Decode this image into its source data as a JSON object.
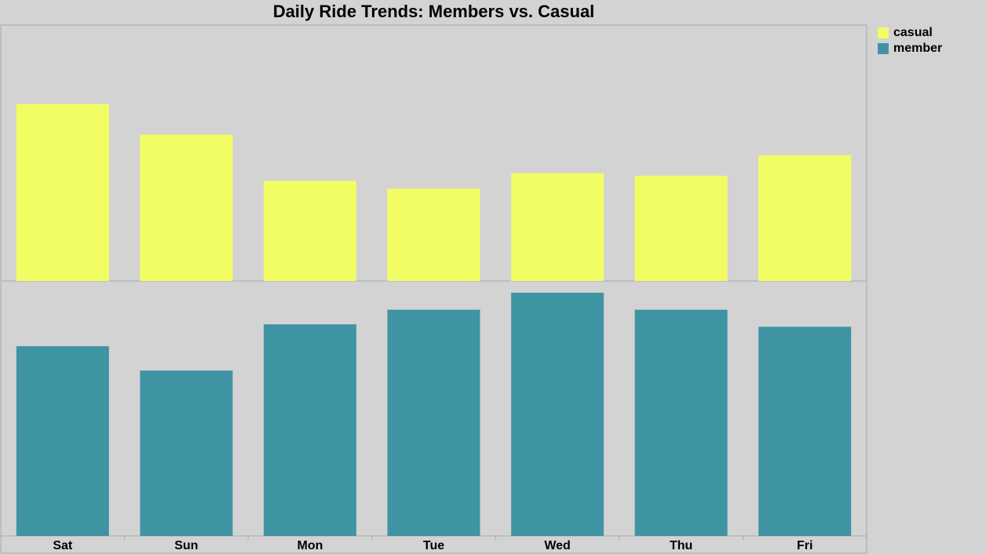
{
  "chart_data": {
    "type": "bar",
    "title": "Daily Ride Trends: Members vs. Casual",
    "xlabel": "",
    "ylabel": "",
    "categories": [
      "Sat",
      "Sun",
      "Mon",
      "Tue",
      "Wed",
      "Thu",
      "Fri"
    ],
    "series": [
      {
        "name": "casual",
        "color": "#f2fd64",
        "values": [
          69,
          57,
          39,
          36,
          42,
          41,
          49
        ]
      },
      {
        "name": "member",
        "color": "#3f94a4",
        "values": [
          78,
          68,
          87,
          93,
          100,
          93,
          86
        ]
      }
    ],
    "layout": "stacked panels (casual on top, member below), shared x axis",
    "grid": false,
    "legend_position": "right"
  }
}
